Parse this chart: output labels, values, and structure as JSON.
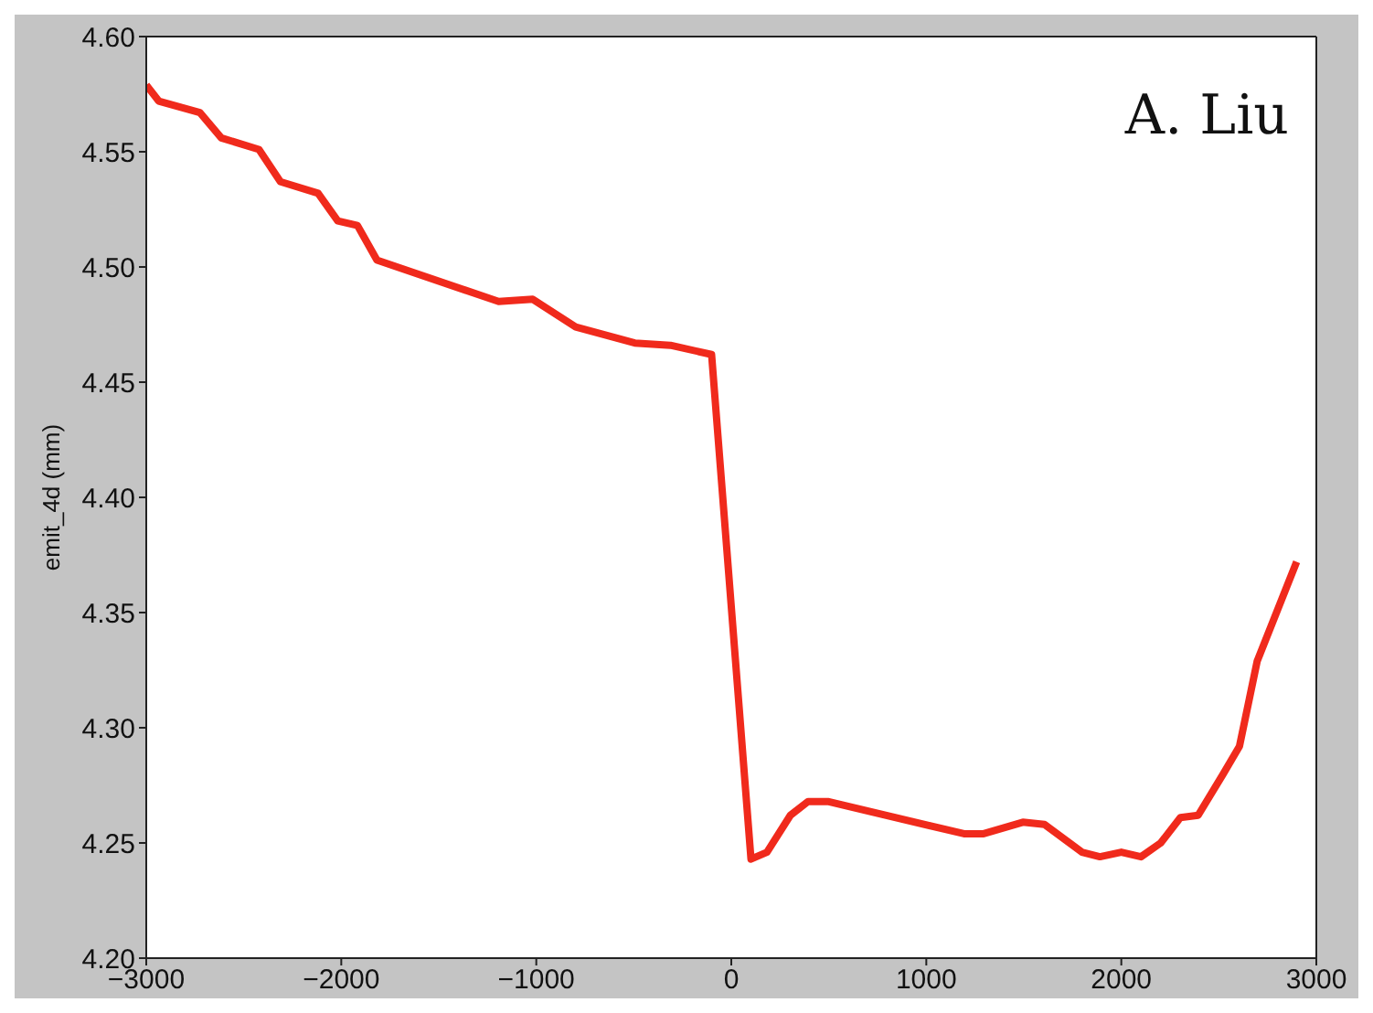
{
  "chart_data": {
    "type": "line",
    "ylabel": "emit_4d (mm)",
    "annotations": [
      "A. Liu"
    ],
    "x": [
      -3000,
      -2936,
      -2725,
      -2615,
      -2422,
      -2312,
      -2119,
      -2018,
      -1917,
      -1817,
      -1193,
      -1018,
      -798,
      -495,
      -312,
      -101,
      101,
      183,
      303,
      394,
      495,
      1193,
      1294,
      1495,
      1606,
      1798,
      1890,
      2000,
      2101,
      2202,
      2303,
      2394,
      2523,
      2606,
      2697,
      2899
    ],
    "series": [
      {
        "color": "#f02a1c",
        "values": [
          4.579,
          4.572,
          4.567,
          4.556,
          4.551,
          4.537,
          4.532,
          4.52,
          4.518,
          4.503,
          4.485,
          4.486,
          4.474,
          4.467,
          4.466,
          4.462,
          4.243,
          4.246,
          4.262,
          4.268,
          4.268,
          4.254,
          4.254,
          4.259,
          4.258,
          4.246,
          4.244,
          4.246,
          4.244,
          4.25,
          4.261,
          4.262,
          4.28,
          4.292,
          4.329,
          4.372
        ]
      }
    ],
    "xlim": [
      -3000,
      3000
    ],
    "xticks": [
      {
        "value": -3000,
        "label": "−3000"
      },
      {
        "value": -2000,
        "label": "−2000"
      },
      {
        "value": -1000,
        "label": "−1000"
      },
      0,
      1000,
      2000,
      3000
    ],
    "ylim": [
      4.2,
      4.6
    ],
    "yticks": [
      {
        "value": 4.2,
        "label": "4.20"
      },
      4.25,
      {
        "value": 4.3,
        "label": "4.30"
      },
      4.35,
      {
        "value": 4.4,
        "label": "4.40"
      },
      4.45,
      {
        "value": 4.5,
        "label": "4.50"
      },
      4.55,
      {
        "value": 4.6,
        "label": "4.60"
      }
    ],
    "grid": false,
    "marker": "none",
    "line_style": "solid"
  }
}
